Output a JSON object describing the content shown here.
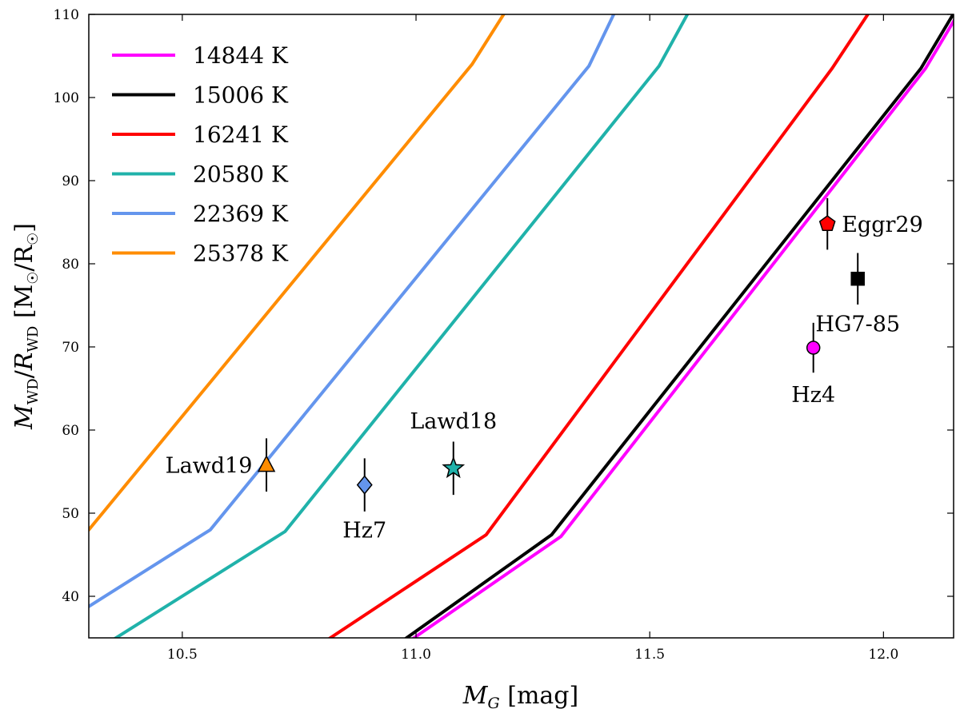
{
  "chart_data": {
    "type": "line",
    "xlabel": "M_G [mag]",
    "ylabel": "M_WD/R_WD [M_☉/R_☉]",
    "xlim": [
      10.3,
      12.15
    ],
    "ylim": [
      35,
      110
    ],
    "x_ticks": [
      10.5,
      11.0,
      11.5,
      12.0
    ],
    "x_tick_labels": [
      "10.5",
      "11.0",
      "11.5",
      "12.0"
    ],
    "y_ticks": [
      40,
      50,
      60,
      70,
      80,
      90,
      100,
      110
    ],
    "y_tick_labels": [
      "40",
      "50",
      "60",
      "70",
      "80",
      "90",
      "100",
      "110"
    ],
    "grid": false,
    "legend_position": "top-left",
    "series": [
      {
        "name": "14844 K",
        "color": "#ff00ff",
        "points": [
          [
            10.97,
            34.0
          ],
          [
            11.31,
            47.2
          ],
          [
            12.09,
            103.5
          ],
          [
            12.18,
            112.0
          ]
        ]
      },
      {
        "name": "15006 K",
        "color": "#000000",
        "points": [
          [
            10.955,
            34.0
          ],
          [
            11.29,
            47.4
          ],
          [
            12.08,
            103.5
          ],
          [
            12.17,
            112.0
          ]
        ]
      },
      {
        "name": "16241 K",
        "color": "#ff0000",
        "points": [
          [
            10.79,
            34.0
          ],
          [
            11.15,
            47.4
          ],
          [
            11.89,
            103.5
          ],
          [
            11.99,
            112.0
          ]
        ]
      },
      {
        "name": "20580 K",
        "color": "#20b2aa",
        "points": [
          [
            10.33,
            34.0
          ],
          [
            10.72,
            47.8
          ],
          [
            11.52,
            103.8
          ],
          [
            11.6,
            112.0
          ]
        ]
      },
      {
        "name": "22369 K",
        "color": "#6495ed",
        "points": [
          [
            10.25,
            37.0
          ],
          [
            10.56,
            48.0
          ],
          [
            11.37,
            103.8
          ],
          [
            11.44,
            112.0
          ]
        ]
      },
      {
        "name": "25378 K",
        "color": "#ff8c00",
        "points": [
          [
            10.25,
            45.0
          ],
          [
            10.3,
            48.0
          ],
          [
            11.12,
            104.0
          ],
          [
            11.21,
            112.0
          ]
        ]
      }
    ],
    "points": [
      {
        "label": "Lawd19",
        "x": 10.68,
        "y": 55.8,
        "yerr": 3.2,
        "marker": "triangle",
        "color": "#ff8c00"
      },
      {
        "label": "Hz7",
        "x": 10.89,
        "y": 53.4,
        "yerr": 3.2,
        "marker": "diamond",
        "color": "#6495ed"
      },
      {
        "label": "Lawd18",
        "x": 11.08,
        "y": 55.4,
        "yerr": 3.2,
        "marker": "star",
        "color": "#20b2aa"
      },
      {
        "label": "Hz4",
        "x": 11.85,
        "y": 69.9,
        "yerr": 3.0,
        "marker": "circle",
        "color": "#ff00ff"
      },
      {
        "label": "Eggr29",
        "x": 11.88,
        "y": 84.8,
        "yerr": 3.1,
        "marker": "pentagon",
        "color": "#ff0000"
      },
      {
        "label": "HG7-85",
        "x": 11.945,
        "y": 78.2,
        "yerr": 3.1,
        "marker": "square",
        "color": "#000000"
      }
    ]
  }
}
